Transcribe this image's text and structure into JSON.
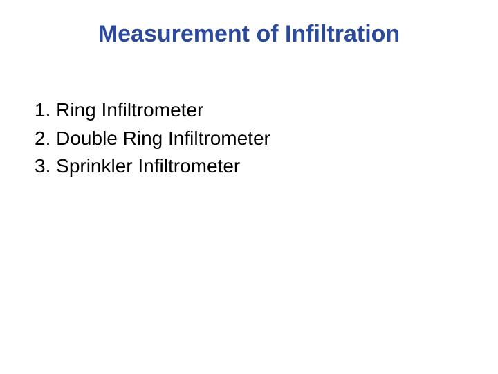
{
  "slide": {
    "title": "Measurement of Infiltration",
    "title_color": "#2b4a9b",
    "title_fontsize": 34,
    "body_color": "#000000",
    "body_fontsize": 28,
    "background_color": "#ffffff",
    "items": [
      "Ring Infiltrometer",
      "Double Ring Infiltrometer",
      "Sprinkler Infiltrometer"
    ]
  }
}
